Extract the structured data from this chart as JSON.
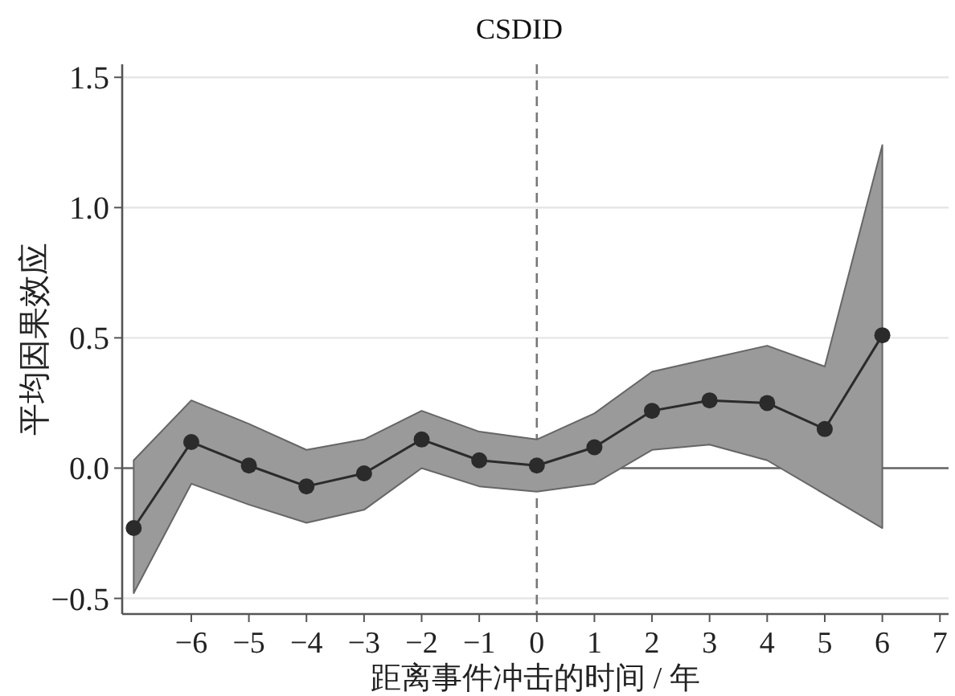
{
  "chart_data": {
    "type": "line",
    "title": "CSDID",
    "xlabel": "距离事件冲击的时间 / 年",
    "ylabel": "平均因果效应",
    "x": [
      -7,
      -6,
      -5,
      -4,
      -3,
      -2,
      -1,
      0,
      1,
      2,
      3,
      4,
      5,
      6
    ],
    "series": [
      {
        "color": "#2b2b2b",
        "values": [
          -0.23,
          0.1,
          0.01,
          -0.07,
          -0.02,
          0.11,
          0.03,
          0.01,
          0.08,
          0.22,
          0.26,
          0.25,
          0.15,
          0.51
        ],
        "lower": [
          -0.48,
          -0.06,
          -0.14,
          -0.21,
          -0.16,
          0.0,
          -0.07,
          -0.09,
          -0.06,
          0.07,
          0.09,
          0.03,
          -0.1,
          -0.23
        ],
        "upper": [
          0.03,
          0.26,
          0.17,
          0.07,
          0.11,
          0.22,
          0.14,
          0.11,
          0.21,
          0.37,
          0.42,
          0.47,
          0.39,
          1.24
        ]
      }
    ],
    "marker": "circle",
    "line_style": "solid",
    "xlim": [
      -7.2,
      7.15
    ],
    "ylim": [
      -0.56,
      1.55
    ],
    "xticks": [
      -6,
      -5,
      -4,
      -3,
      -2,
      -1,
      0,
      1,
      2,
      3,
      4,
      5,
      6,
      7
    ],
    "yticks": [
      -0.5,
      {
        "value": 0,
        "label": "0.0"
      },
      0.5,
      {
        "value": 1,
        "label": "1.0"
      },
      1.5
    ],
    "grid": "y",
    "ref_lines": [
      {
        "axis": "y",
        "value": 0,
        "color": "#666666",
        "line_style": "solid"
      },
      {
        "axis": "x",
        "value": 0,
        "color": "#777777",
        "line_style": "dashed"
      }
    ]
  }
}
